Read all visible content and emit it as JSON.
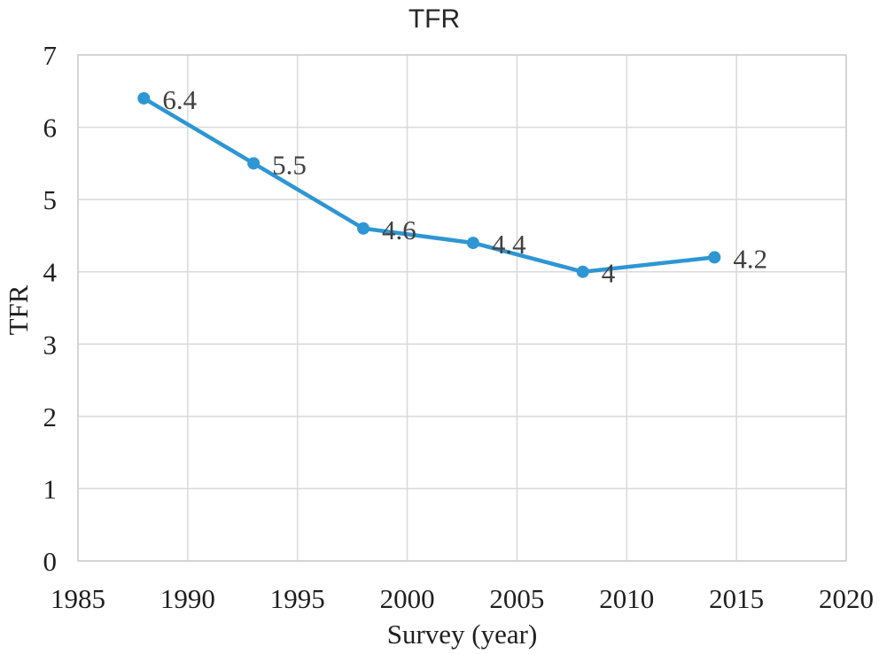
{
  "chart_data": {
    "type": "line",
    "title": "TFR",
    "xlabel": "Survey (year)",
    "ylabel": "TFR",
    "x": [
      1988,
      1993,
      1998,
      2003,
      2008,
      2014
    ],
    "values": [
      6.4,
      5.5,
      4.6,
      4.4,
      4,
      4.2
    ],
    "point_labels": [
      "6.4",
      "5.5",
      "4.6",
      "4.4",
      "4",
      "4.2"
    ],
    "series_name": "TFR",
    "xlim": [
      1985,
      2020
    ],
    "ylim": [
      0,
      7
    ],
    "xticks": [
      1985,
      1990,
      1995,
      2000,
      2005,
      2010,
      2015,
      2020
    ],
    "yticks": [
      0,
      1,
      2,
      3,
      4,
      5,
      6,
      7
    ],
    "grid": true,
    "legend": "none",
    "line_color": "#2E96D3",
    "marker_color": "#2E96D3",
    "grid_color": "#D9D9D9",
    "border_color": "#CDCDCD",
    "tick_color": "#1F1F1F",
    "point_label_color": "#404040"
  }
}
